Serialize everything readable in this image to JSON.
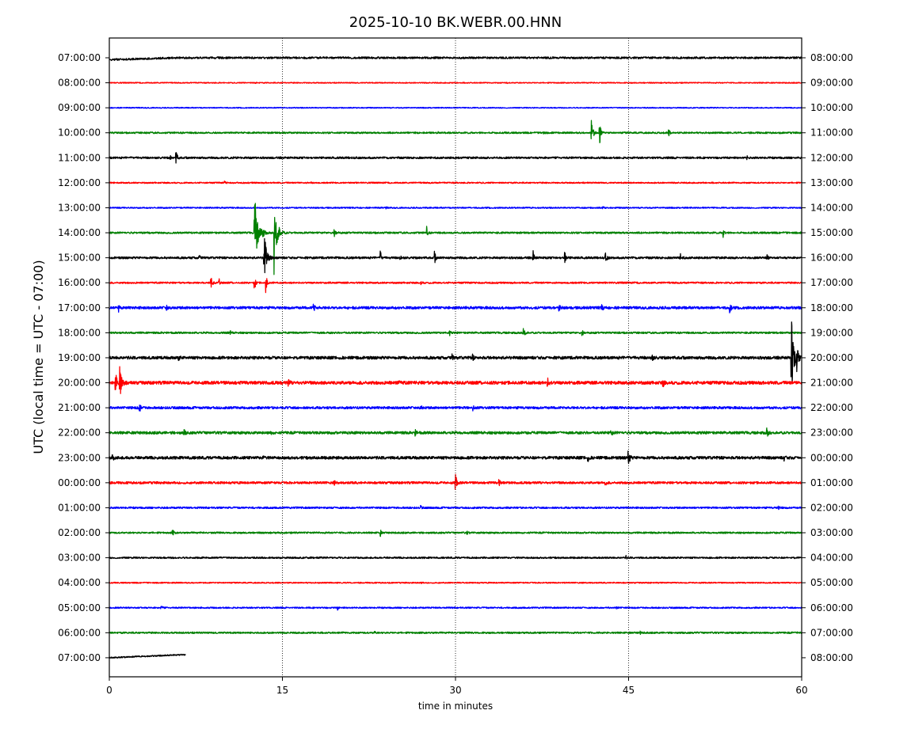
{
  "chart_data": {
    "type": "line",
    "title": "2025-10-10 BK.WEBR.00.HNN",
    "xlabel": "time in minutes",
    "ylabel": "UTC (local time = UTC - 07:00)",
    "xlim": [
      0,
      60
    ],
    "x_ticks": [
      "0",
      "15",
      "30",
      "45",
      "60"
    ],
    "x_tick_values": [
      0,
      15,
      30,
      45,
      60
    ],
    "grid": "vertical dotted at 15, 30, 45",
    "color_cycle": [
      "#000000",
      "#ff0000",
      "#0000ff",
      "#008000"
    ],
    "left_labels": [
      "07:00:00",
      "08:00:00",
      "09:00:00",
      "10:00:00",
      "11:00:00",
      "12:00:00",
      "13:00:00",
      "14:00:00",
      "15:00:00",
      "16:00:00",
      "17:00:00",
      "18:00:00",
      "19:00:00",
      "20:00:00",
      "21:00:00",
      "22:00:00",
      "23:00:00",
      "00:00:00",
      "01:00:00",
      "02:00:00",
      "03:00:00",
      "04:00:00",
      "05:00:00",
      "06:00:00",
      "07:00:00"
    ],
    "right_labels": [
      "08:00:00",
      "09:00:00",
      "10:00:00",
      "11:00:00",
      "12:00:00",
      "13:00:00",
      "14:00:00",
      "15:00:00",
      "16:00:00",
      "17:00:00",
      "18:00:00",
      "19:00:00",
      "20:00:00",
      "21:00:00",
      "22:00:00",
      "23:00:00",
      "00:00:00",
      "01:00:00",
      "02:00:00",
      "03:00:00",
      "04:00:00",
      "05:00:00",
      "06:00:00",
      "07:00:00",
      "08:00:00"
    ],
    "series": [
      {
        "noise": 1.2,
        "end": 60,
        "events": [
          [
            6.5,
            0.8,
            3
          ],
          [
            12.5,
            0.6,
            2
          ],
          [
            40,
            0.5,
            2
          ]
        ]
      },
      {
        "noise": 0.6,
        "end": 60,
        "events": [
          [
            12.7,
            0.7,
            4
          ],
          [
            34.5,
            0.4,
            3
          ]
        ]
      },
      {
        "noise": 0.6,
        "end": 60,
        "events": []
      },
      {
        "noise": 1.0,
        "end": 60,
        "events": [
          [
            37.5,
            2.5,
            6
          ],
          [
            41.8,
            19,
            6
          ],
          [
            42.5,
            14,
            6
          ],
          [
            48.5,
            3,
            6
          ],
          [
            28.5,
            1,
            4
          ]
        ]
      },
      {
        "noise": 1.2,
        "end": 60,
        "events": [
          [
            5.8,
            8,
            5
          ],
          [
            5.3,
            2,
            3
          ],
          [
            12.2,
            1,
            2
          ],
          [
            55.3,
            1.5,
            3
          ]
        ]
      },
      {
        "noise": 0.8,
        "end": 60,
        "events": [
          [
            10,
            2,
            4
          ],
          [
            17.5,
            1,
            4
          ]
        ]
      },
      {
        "noise": 0.8,
        "end": 60,
        "events": [
          [
            24,
            1,
            4
          ],
          [
            42.8,
            1.5,
            3
          ]
        ]
      },
      {
        "noise": 1.1,
        "end": 60,
        "events": [
          [
            12.6,
            48,
            12
          ],
          [
            13.2,
            10,
            8
          ],
          [
            14.3,
            52,
            12
          ],
          [
            19.5,
            4,
            8
          ],
          [
            27.5,
            8,
            4
          ],
          [
            53.2,
            8,
            4
          ]
        ]
      },
      {
        "noise": 1.3,
        "end": 60,
        "events": [
          [
            7.8,
            3,
            4
          ],
          [
            13.4,
            40,
            10
          ],
          [
            23.5,
            8,
            4
          ],
          [
            25.2,
            5,
            4
          ],
          [
            28.2,
            8,
            4
          ],
          [
            36.7,
            11,
            5
          ],
          [
            39.5,
            8,
            4
          ],
          [
            43,
            5,
            6
          ],
          [
            49.5,
            5,
            6
          ],
          [
            57,
            3,
            6
          ]
        ]
      },
      {
        "noise": 1.0,
        "end": 60,
        "events": [
          [
            8.8,
            9,
            6
          ],
          [
            9.5,
            6,
            4
          ],
          [
            12.6,
            10,
            4
          ],
          [
            13.6,
            14,
            4
          ],
          [
            27,
            3,
            4
          ]
        ]
      },
      {
        "noise": 1.6,
        "end": 60,
        "events": [
          [
            0.8,
            4,
            4
          ],
          [
            5,
            3,
            4
          ],
          [
            17.7,
            6,
            5
          ],
          [
            39,
            4,
            5
          ],
          [
            42.7,
            4,
            5
          ],
          [
            53.8,
            5,
            5
          ]
        ]
      },
      {
        "noise": 1.1,
        "end": 60,
        "events": [
          [
            29.5,
            3,
            3
          ],
          [
            35.9,
            12,
            5
          ],
          [
            41,
            3,
            5
          ],
          [
            10.5,
            2,
            4
          ]
        ]
      },
      {
        "noise": 1.8,
        "end": 60,
        "events": [
          [
            6,
            3,
            5
          ],
          [
            29.7,
            5,
            4
          ],
          [
            31.5,
            3,
            4
          ],
          [
            47,
            4,
            6
          ],
          [
            59.1,
            58,
            10
          ],
          [
            59.6,
            14,
            6
          ]
        ]
      },
      {
        "noise": 2.0,
        "end": 60,
        "events": [
          [
            0.5,
            18,
            8
          ],
          [
            0.9,
            28,
            8
          ],
          [
            15.5,
            4,
            6
          ],
          [
            25,
            4,
            6
          ],
          [
            38,
            4,
            6
          ],
          [
            48,
            4,
            6
          ]
        ]
      },
      {
        "noise": 1.5,
        "end": 60,
        "events": [
          [
            2.6,
            7,
            5
          ],
          [
            27,
            3,
            5
          ],
          [
            31.5,
            3,
            5
          ]
        ]
      },
      {
        "noise": 1.6,
        "end": 60,
        "events": [
          [
            6.5,
            3,
            6
          ],
          [
            14,
            3,
            5
          ],
          [
            26.5,
            4,
            6
          ],
          [
            43.5,
            4,
            6
          ],
          [
            57,
            5,
            6
          ]
        ]
      },
      {
        "noise": 1.8,
        "end": 60,
        "events": [
          [
            0.3,
            4,
            4
          ],
          [
            13.3,
            4,
            4
          ],
          [
            45,
            11,
            5
          ],
          [
            41.5,
            3,
            4
          ],
          [
            58.5,
            3,
            4
          ]
        ]
      },
      {
        "noise": 1.4,
        "end": 60,
        "events": [
          [
            30,
            11,
            6
          ],
          [
            33.8,
            4,
            4
          ],
          [
            43,
            3,
            5
          ],
          [
            19.5,
            2,
            6
          ]
        ]
      },
      {
        "noise": 1.1,
        "end": 60,
        "events": [
          [
            27,
            2,
            4
          ],
          [
            58,
            2,
            6
          ]
        ]
      },
      {
        "noise": 1.0,
        "end": 60,
        "events": [
          [
            5.5,
            3,
            6
          ],
          [
            23.5,
            4,
            3
          ],
          [
            31,
            2,
            4
          ]
        ]
      },
      {
        "noise": 1.0,
        "end": 60,
        "events": [
          [
            44.8,
            2,
            3
          ]
        ]
      },
      {
        "noise": 0.7,
        "end": 60,
        "events": [
          [
            27,
            2,
            3
          ]
        ]
      },
      {
        "noise": 0.9,
        "end": 60,
        "events": [
          [
            4.5,
            2,
            6
          ],
          [
            19.8,
            3,
            3
          ],
          [
            44,
            1.5,
            5
          ]
        ]
      },
      {
        "noise": 1.0,
        "end": 60,
        "events": [
          [
            23,
            2,
            4
          ],
          [
            46,
            1.5,
            4
          ]
        ]
      },
      {
        "noise": 0.8,
        "end": 6.6,
        "events": []
      }
    ]
  }
}
